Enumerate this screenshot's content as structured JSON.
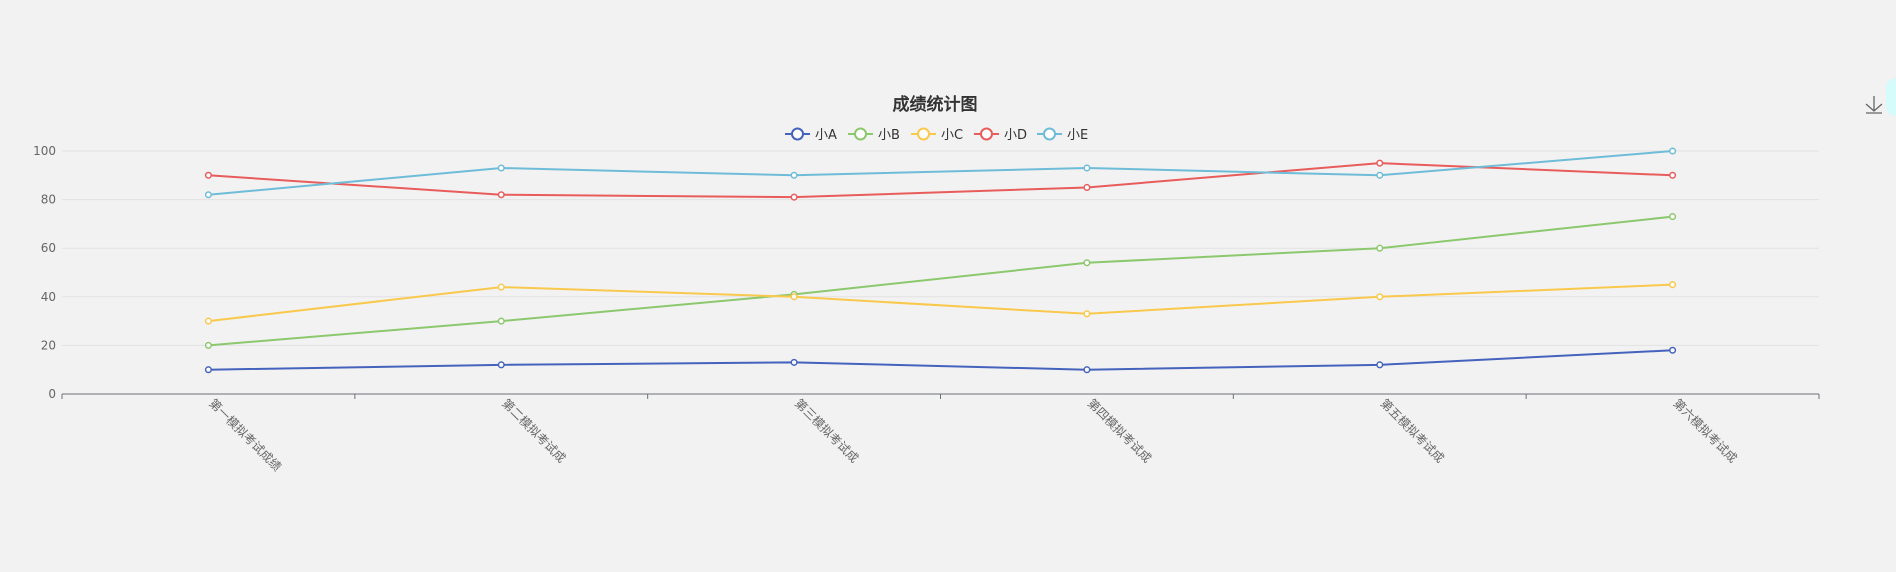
{
  "toolbox": {
    "download_icon": "download-icon"
  },
  "chart_data": {
    "type": "line",
    "title": "成绩统计图",
    "categories": [
      "第一模拟考试成绩",
      "第二模拟考试成",
      "第三模拟考试成",
      "第四模拟考试成",
      "第五模拟考试成",
      "第六模拟考试成"
    ],
    "ylim": [
      0,
      100
    ],
    "yticks": [
      0,
      20,
      40,
      60,
      80,
      100
    ],
    "grid": true,
    "legend_position": "top-center",
    "series": [
      {
        "name": "小A",
        "color": "#4563bd",
        "values": [
          10,
          12,
          13,
          10,
          12,
          18
        ]
      },
      {
        "name": "小B",
        "color": "#8cc86e",
        "values": [
          20,
          30,
          41,
          54,
          60,
          73
        ]
      },
      {
        "name": "小C",
        "color": "#f9c94d",
        "values": [
          30,
          44,
          40,
          33,
          40,
          45
        ]
      },
      {
        "name": "小D",
        "color": "#e85c5c",
        "values": [
          90,
          82,
          81,
          85,
          95,
          90
        ]
      },
      {
        "name": "小E",
        "color": "#6fbcd8",
        "values": [
          82,
          93,
          90,
          93,
          90,
          100
        ]
      }
    ]
  }
}
